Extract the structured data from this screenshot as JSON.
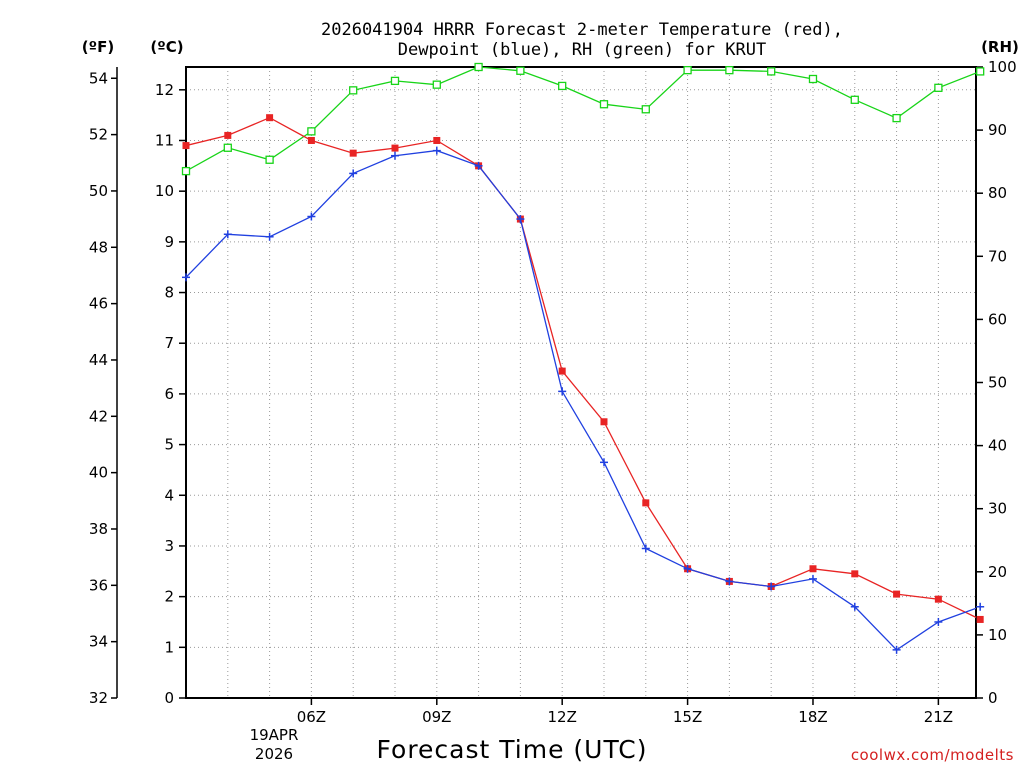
{
  "title_line1": "2026041904 HRRR Forecast 2-meter Temperature (red),",
  "title_line2": "Dewpoint (blue), RH (green) for KRUT",
  "axis_units": {
    "fahrenheit": "(ºF)",
    "celsius": "(ºC)",
    "rh": "(RH)"
  },
  "x_axis_label": "Forecast Time (UTC)",
  "date_label": {
    "day_month": "19APR",
    "year": "2026"
  },
  "credit": "coolwx.com/modelts",
  "colors": {
    "temperature": "#e82424",
    "dewpoint": "#2040e0",
    "rh": "#18d418",
    "grid": "#9a9a9a",
    "axis": "#000000"
  },
  "chart_data": {
    "type": "line",
    "title": "2026041904 HRRR Forecast 2-meter Temperature (red), Dewpoint (blue), RH (green) for KRUT",
    "xlabel": "Forecast Time (UTC)",
    "x_hours_utc": [
      3,
      4,
      5,
      6,
      7,
      8,
      9,
      10,
      11,
      12,
      13,
      14,
      15,
      16,
      17,
      18,
      19,
      20,
      21,
      22
    ],
    "xlim": [
      3,
      21.9
    ],
    "x_ticks": [
      {
        "hour": 6,
        "label": "06Z"
      },
      {
        "hour": 9,
        "label": "09Z"
      },
      {
        "hour": 12,
        "label": "12Z"
      },
      {
        "hour": 15,
        "label": "15Z"
      },
      {
        "hour": 18,
        "label": "18Z"
      },
      {
        "hour": 21,
        "label": "21Z"
      }
    ],
    "y_celsius": {
      "ylim": [
        0,
        12.45
      ],
      "ticks": [
        "0",
        "1",
        "2",
        "3",
        "4",
        "5",
        "6",
        "7",
        "8",
        "9",
        "10",
        "11",
        "12"
      ]
    },
    "y_fahrenheit": {
      "ylim": [
        32,
        54.4
      ],
      "ticks": [
        "32",
        "34",
        "36",
        "38",
        "40",
        "42",
        "44",
        "46",
        "48",
        "50",
        "52",
        "54"
      ]
    },
    "y_rh": {
      "ylim": [
        0,
        100
      ],
      "ticks": [
        "0",
        "10",
        "20",
        "30",
        "40",
        "50",
        "60",
        "70",
        "80",
        "90",
        "100"
      ]
    },
    "series": [
      {
        "name": "Temperature",
        "units": "degC",
        "marker": "filled-square",
        "values": [
          10.9,
          11.1,
          11.45,
          11.0,
          10.75,
          10.85,
          11.0,
          10.5,
          9.45,
          6.45,
          5.45,
          3.85,
          2.55,
          2.3,
          2.2,
          2.55,
          2.45,
          2.05,
          1.95,
          1.55
        ]
      },
      {
        "name": "Dewpoint",
        "units": "degC",
        "marker": "plus",
        "values": [
          8.3,
          9.15,
          9.1,
          9.5,
          10.35,
          10.7,
          10.8,
          10.5,
          9.45,
          6.05,
          4.65,
          2.95,
          2.55,
          2.3,
          2.2,
          2.35,
          1.8,
          0.95,
          1.5,
          1.8
        ]
      },
      {
        "name": "RH",
        "units": "percent",
        "marker": "open-square",
        "values": [
          83.5,
          87.2,
          85.3,
          89.8,
          96.3,
          97.8,
          97.2,
          100.0,
          99.4,
          97.0,
          94.1,
          93.3,
          99.5,
          99.5,
          99.3,
          98.1,
          94.8,
          91.9,
          96.7,
          99.3
        ]
      }
    ]
  }
}
